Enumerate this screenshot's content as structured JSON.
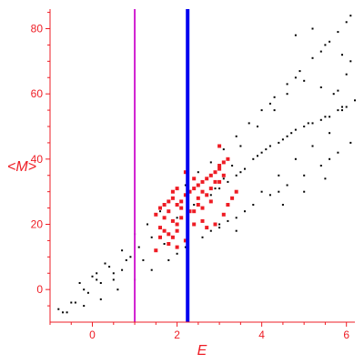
{
  "chart_data": {
    "type": "scatter",
    "xlabel": "E",
    "ylabel": "<M>",
    "xlim": [
      -1.0,
      6.2
    ],
    "ylim": [
      -10,
      86
    ],
    "xticks": [
      0,
      2,
      4,
      6
    ],
    "yticks": [
      0,
      20,
      40,
      60,
      80
    ],
    "grid": false,
    "colors": {
      "axis": "#ee1c24",
      "black_points": "#000000",
      "red_points": "#ee1c24",
      "magenta_line": "#d020d0",
      "blue_line": "#0000ee"
    },
    "vertical_lines": [
      {
        "x": 1.0,
        "color": "magenta"
      },
      {
        "x": 2.25,
        "color": "blue"
      }
    ],
    "point_groups": [
      {
        "color": "black",
        "description": "upper band",
        "points": [
          [
            -0.8,
            -6
          ],
          [
            -0.5,
            -4
          ],
          [
            -0.2,
            0
          ],
          [
            0.1,
            3
          ],
          [
            0.4,
            7
          ],
          [
            0.7,
            12
          ],
          [
            1.0,
            17
          ],
          [
            1.3,
            20
          ],
          [
            1.6,
            24
          ],
          [
            1.9,
            28
          ],
          [
            2.2,
            32
          ],
          [
            2.5,
            36
          ],
          [
            2.8,
            39
          ],
          [
            3.1,
            43
          ],
          [
            3.4,
            47
          ],
          [
            3.7,
            51
          ],
          [
            4.0,
            55
          ],
          [
            4.3,
            59
          ],
          [
            4.6,
            63
          ],
          [
            4.9,
            67
          ],
          [
            5.2,
            71
          ],
          [
            5.5,
            75
          ],
          [
            5.8,
            79
          ],
          [
            6.1,
            84
          ],
          [
            6.0,
            82
          ],
          [
            5.4,
            73
          ],
          [
            4.8,
            65
          ],
          [
            4.2,
            57
          ]
        ]
      },
      {
        "color": "black",
        "description": "main dense band",
        "points": [
          [
            -0.7,
            -7
          ],
          [
            -0.4,
            -4
          ],
          [
            -0.1,
            -1
          ],
          [
            0.2,
            2
          ],
          [
            0.5,
            5
          ],
          [
            0.8,
            9
          ],
          [
            1.1,
            13
          ],
          [
            1.4,
            16
          ],
          [
            2.0,
            22
          ],
          [
            2.4,
            26
          ],
          [
            2.8,
            29
          ],
          [
            3.0,
            31
          ],
          [
            3.2,
            33
          ],
          [
            3.4,
            35
          ],
          [
            3.6,
            37
          ],
          [
            3.8,
            40
          ],
          [
            4.0,
            42
          ],
          [
            4.2,
            44
          ],
          [
            4.4,
            45
          ],
          [
            4.6,
            47
          ],
          [
            4.8,
            49
          ],
          [
            5.0,
            50
          ],
          [
            5.2,
            51
          ],
          [
            5.4,
            52
          ],
          [
            5.6,
            53
          ],
          [
            5.8,
            55
          ],
          [
            6.0,
            56
          ],
          [
            6.2,
            58
          ],
          [
            4.5,
            46
          ],
          [
            4.7,
            48
          ],
          [
            5.1,
            51
          ],
          [
            5.5,
            53
          ],
          [
            5.9,
            56
          ],
          [
            3.5,
            36
          ],
          [
            3.9,
            41
          ],
          [
            4.1,
            43
          ]
        ]
      },
      {
        "color": "black",
        "description": "lower band",
        "points": [
          [
            -0.6,
            -7
          ],
          [
            -0.2,
            -5
          ],
          [
            0.2,
            -3
          ],
          [
            0.6,
            0
          ],
          [
            1.0,
            3
          ],
          [
            1.4,
            6
          ],
          [
            1.8,
            9
          ],
          [
            2.2,
            13
          ],
          [
            2.6,
            16
          ],
          [
            3.0,
            19
          ],
          [
            3.4,
            22
          ],
          [
            3.8,
            26
          ],
          [
            4.2,
            29
          ],
          [
            4.6,
            32
          ],
          [
            5.0,
            35
          ],
          [
            5.4,
            38
          ],
          [
            5.8,
            42
          ],
          [
            6.1,
            45
          ],
          [
            5.6,
            40
          ],
          [
            4.4,
            30
          ],
          [
            3.2,
            21
          ],
          [
            2.0,
            11
          ]
        ]
      },
      {
        "color": "black",
        "description": "scattered curves",
        "points": [
          [
            3.6,
            24
          ],
          [
            4.0,
            30
          ],
          [
            4.4,
            35
          ],
          [
            4.8,
            40
          ],
          [
            5.2,
            44
          ],
          [
            5.6,
            48
          ],
          [
            5.9,
            55
          ],
          [
            5.7,
            60
          ],
          [
            5.4,
            62
          ],
          [
            5.0,
            64
          ],
          [
            4.6,
            60
          ],
          [
            4.3,
            55
          ],
          [
            3.9,
            50
          ],
          [
            3.5,
            44
          ],
          [
            3.3,
            38
          ],
          [
            3.1,
            34
          ],
          [
            2.9,
            31
          ],
          [
            6.1,
            70
          ],
          [
            5.9,
            72
          ],
          [
            5.6,
            76
          ],
          [
            5.2,
            80
          ],
          [
            4.8,
            78
          ],
          [
            6.0,
            66
          ],
          [
            5.8,
            61
          ],
          [
            3.0,
            20
          ],
          [
            2.8,
            18
          ],
          [
            3.4,
            18
          ],
          [
            4.5,
            26
          ],
          [
            5.0,
            30
          ],
          [
            5.5,
            34
          ],
          [
            0.1,
            5
          ],
          [
            0.3,
            8
          ],
          [
            0.5,
            3
          ],
          [
            0.7,
            6
          ],
          [
            0.9,
            10
          ],
          [
            1.2,
            9
          ],
          [
            1.5,
            12
          ],
          [
            1.7,
            14
          ],
          [
            -0.3,
            2
          ],
          [
            0.0,
            4
          ]
        ]
      },
      {
        "color": "red",
        "description": "cluster",
        "points": [
          [
            1.5,
            23
          ],
          [
            1.6,
            25
          ],
          [
            1.7,
            26
          ],
          [
            1.8,
            27
          ],
          [
            1.9,
            28
          ],
          [
            2.0,
            26
          ],
          [
            2.1,
            27
          ],
          [
            2.2,
            29
          ],
          [
            2.3,
            30
          ],
          [
            2.4,
            31
          ],
          [
            2.5,
            32
          ],
          [
            2.6,
            33
          ],
          [
            2.7,
            34
          ],
          [
            2.8,
            35
          ],
          [
            2.9,
            36
          ],
          [
            3.0,
            37
          ],
          [
            2.5,
            28
          ],
          [
            2.6,
            30
          ],
          [
            2.8,
            31
          ],
          [
            3.0,
            33
          ],
          [
            3.1,
            35
          ],
          [
            1.7,
            22
          ],
          [
            1.8,
            24
          ],
          [
            1.9,
            21
          ],
          [
            2.0,
            20
          ],
          [
            2.1,
            22
          ],
          [
            1.6,
            19
          ],
          [
            1.7,
            18
          ],
          [
            1.8,
            17
          ],
          [
            1.9,
            16
          ],
          [
            2.0,
            18
          ],
          [
            2.2,
            15
          ],
          [
            2.4,
            20
          ],
          [
            2.6,
            21
          ],
          [
            2.7,
            19
          ],
          [
            2.9,
            20
          ],
          [
            3.1,
            23
          ],
          [
            3.2,
            26
          ],
          [
            3.3,
            28
          ],
          [
            3.4,
            30
          ],
          [
            1.6,
            16
          ],
          [
            1.5,
            12
          ],
          [
            1.8,
            14
          ],
          [
            2.0,
            13
          ],
          [
            2.4,
            24
          ],
          [
            2.5,
            26
          ],
          [
            2.7,
            29
          ],
          [
            2.9,
            33
          ],
          [
            3.0,
            38
          ],
          [
            3.1,
            39
          ],
          [
            3.2,
            40
          ],
          [
            3.0,
            44
          ],
          [
            2.8,
            27
          ],
          [
            2.6,
            25
          ],
          [
            2.3,
            24
          ],
          [
            2.1,
            25
          ],
          [
            1.9,
            30
          ],
          [
            2.0,
            31
          ],
          [
            2.4,
            34
          ],
          [
            2.2,
            36
          ]
        ]
      }
    ]
  }
}
